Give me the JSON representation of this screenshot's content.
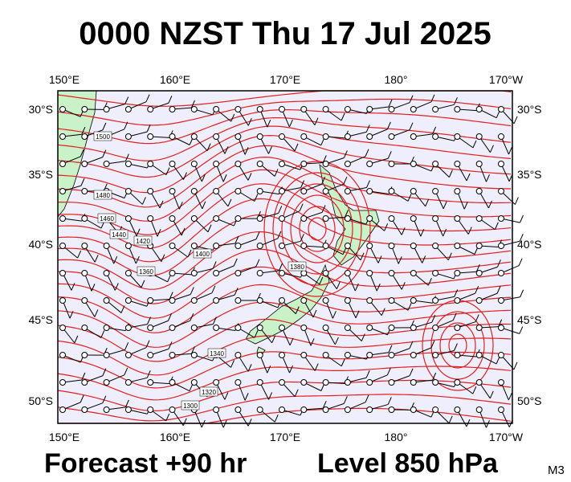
{
  "header": {
    "title": "0000 NZST Thu 17 Jul 2025"
  },
  "map": {
    "lon_labels": [
      "150°E",
      "160°E",
      "170°E",
      "180°",
      "170°W"
    ],
    "lat_labels": [
      "30°S",
      "35°S",
      "40°S",
      "45°S",
      "50°S"
    ],
    "contour_labels": [
      "1500",
      "1480",
      "1460",
      "1440",
      "1420",
      "1400",
      "1380",
      "1360",
      "1340",
      "1320",
      "1300"
    ]
  },
  "footer": {
    "forecast": "Forecast +90 hr",
    "level": "Level 850 hPa",
    "code": "M3"
  }
}
